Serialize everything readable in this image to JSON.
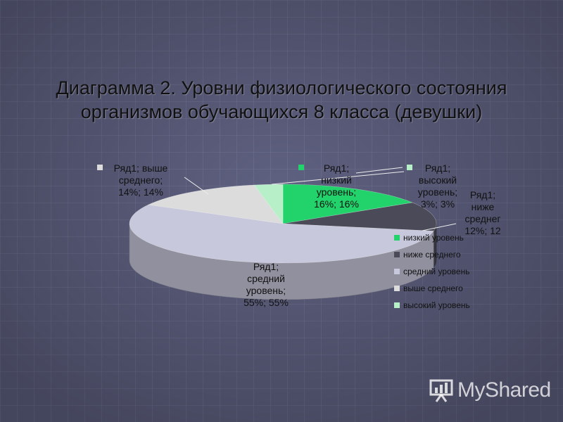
{
  "slide": {
    "background": "#5f6181",
    "title_line1": "Диаграмма 2. Уровни физиологического состояния",
    "title_line2": "организмов обучающихся 8 класса (девушки)"
  },
  "chart_data": {
    "type": "pie",
    "title": "",
    "categories": [
      "низкий уровень",
      "ниже среднего",
      "средний уровень",
      "выше среднего",
      "высокий уровень"
    ],
    "values": [
      16,
      12,
      55,
      14,
      3
    ],
    "colors": [
      "#22d26a",
      "#4a4a58",
      "#c8c8dc",
      "#dcdcdc",
      "#b7f0c8"
    ],
    "series": [
      {
        "name": "Ряд1",
        "values": [
          16,
          12,
          55,
          14,
          3
        ]
      }
    ],
    "legend_position": "right",
    "data_labels": [
      {
        "lines": [
          "Ряд1;",
          "низкий",
          "уровень;",
          "16%; 16%"
        ]
      },
      {
        "lines": [
          "Ряд1;",
          "ниже",
          "среднег",
          "12%; 12"
        ]
      },
      {
        "lines": [
          "Ряд1;",
          "средний",
          "уровень;",
          "55%; 55%"
        ]
      },
      {
        "lines": [
          "Ряд1; выше",
          "среднего;",
          "14%; 14%"
        ]
      },
      {
        "lines": [
          "Ряд1;",
          "высокий",
          "уровень;",
          "3%; 3%"
        ]
      }
    ]
  },
  "watermark": {
    "text": "MyShared",
    "icon": "presentation-board-icon"
  }
}
